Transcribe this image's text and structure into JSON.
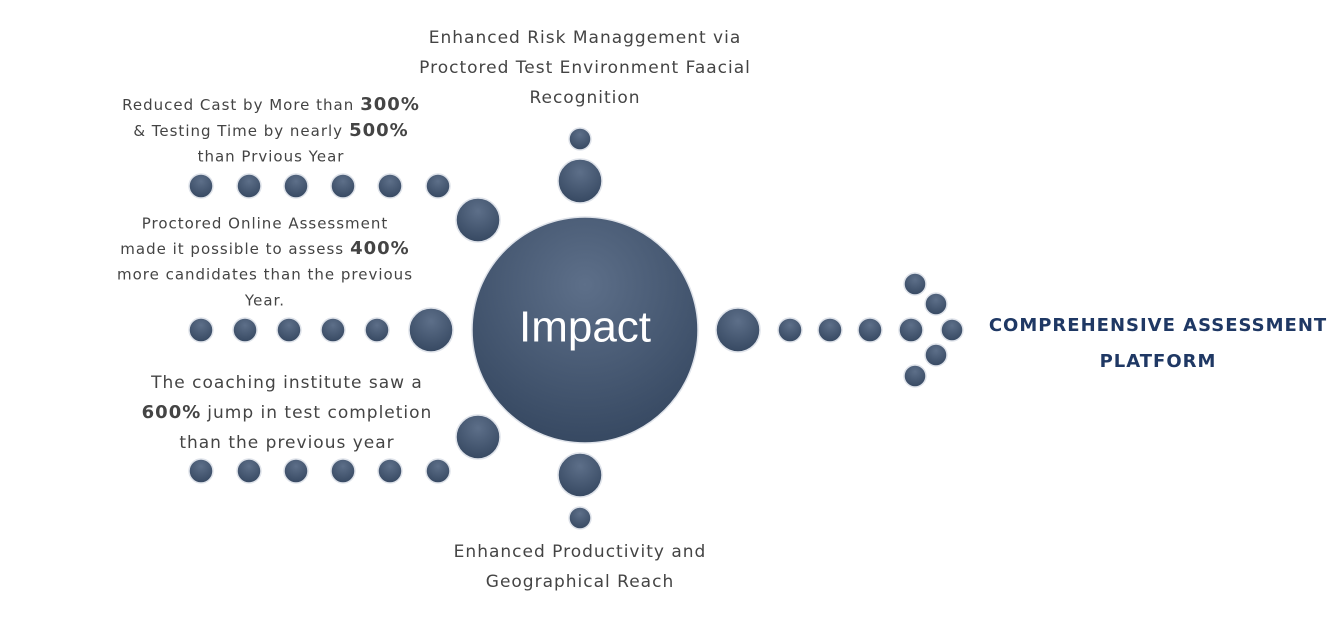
{
  "center": {
    "label": "Impact"
  },
  "top": {
    "lines": [
      "Enhanced Risk Managgement via",
      "Proctored Test Environment Faacial",
      "Recognition"
    ]
  },
  "left_top": {
    "lines": [
      [
        "Reduced Cast by More than",
        "300%"
      ],
      [
        "& Testing Time by nearly",
        "500%"
      ],
      [
        "than Prvious Year"
      ]
    ]
  },
  "left_middle": {
    "lines": [
      [
        "Proctored Online Assessment"
      ],
      [
        "made it possible to assess",
        "400%"
      ],
      [
        "more candidates than the previous"
      ],
      [
        "Year."
      ]
    ]
  },
  "left_bottom": {
    "lines": [
      [
        "The coaching institute saw a"
      ],
      [
        "600%",
        "jump in test completion"
      ],
      [
        "than the previous year"
      ]
    ]
  },
  "bottom": {
    "lines": [
      "Enhanced Productivity and",
      "Geographical Reach"
    ]
  },
  "right": {
    "lines": [
      "COMPREHENSIVE ASSESSMENT",
      "PLATFORM"
    ]
  }
}
